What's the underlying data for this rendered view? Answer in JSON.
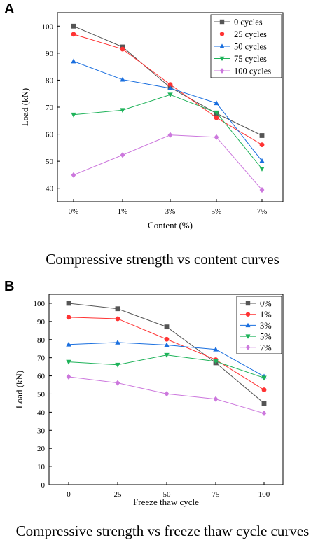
{
  "panels": [
    {
      "letter": "A",
      "caption": "Compressive strength vs content curves"
    },
    {
      "letter": "B",
      "caption": "Compressive strength vs freeze thaw cycle curves"
    }
  ],
  "chart_data": [
    {
      "type": "line",
      "title": "",
      "xlabel": "Content (%)",
      "ylabel": "Load (kN)",
      "categories": [
        "0%",
        "1%",
        "3%",
        "5%",
        "7%"
      ],
      "ylim": [
        35,
        105
      ],
      "yticks": [
        40,
        50,
        60,
        70,
        80,
        90,
        100
      ],
      "legend_position": "top-right",
      "grid": false,
      "series": [
        {
          "name": "0 cycles",
          "color": "#555555",
          "marker": "square",
          "values": [
            100.0,
            92.3,
            77.3,
            67.7,
            59.5
          ]
        },
        {
          "name": "25 cycles",
          "color": "#ff3333",
          "marker": "circle",
          "values": [
            97.0,
            91.5,
            78.4,
            66.1,
            56.1
          ]
        },
        {
          "name": "50 cycles",
          "color": "#1a6fdf",
          "marker": "triangle-up",
          "values": [
            87.0,
            80.2,
            77.0,
            71.5,
            50.1
          ]
        },
        {
          "name": "75 cycles",
          "color": "#1fb35a",
          "marker": "triangle-down",
          "values": [
            67.2,
            68.9,
            74.6,
            68.0,
            47.2
          ]
        },
        {
          "name": "100 cycles",
          "color": "#cc77dd",
          "marker": "diamond",
          "values": [
            44.9,
            52.3,
            59.7,
            58.9,
            39.4
          ]
        }
      ]
    },
    {
      "type": "line",
      "title": "",
      "xlabel": "Freeze thaw cycle",
      "ylabel": "Load (kN)",
      "categories": [
        "0",
        "25",
        "50",
        "75",
        "100"
      ],
      "ylim": [
        0,
        105
      ],
      "yticks": [
        0,
        10,
        20,
        30,
        40,
        50,
        60,
        70,
        80,
        90,
        100
      ],
      "legend_position": "top-right",
      "grid": false,
      "series": [
        {
          "name": "0%",
          "color": "#555555",
          "marker": "square",
          "values": [
            100.0,
            97.0,
            87.0,
            67.2,
            44.9
          ]
        },
        {
          "name": "1%",
          "color": "#ff3333",
          "marker": "circle",
          "values": [
            92.3,
            91.5,
            80.2,
            68.9,
            52.3
          ]
        },
        {
          "name": "3%",
          "color": "#1a6fdf",
          "marker": "triangle-up",
          "values": [
            77.3,
            78.4,
            77.0,
            74.6,
            59.7
          ]
        },
        {
          "name": "5%",
          "color": "#1fb35a",
          "marker": "triangle-down",
          "values": [
            67.7,
            66.1,
            71.5,
            68.0,
            58.9
          ]
        },
        {
          "name": "7%",
          "color": "#cc77dd",
          "marker": "diamond",
          "values": [
            59.5,
            56.1,
            50.1,
            47.2,
            39.4
          ]
        }
      ]
    }
  ]
}
